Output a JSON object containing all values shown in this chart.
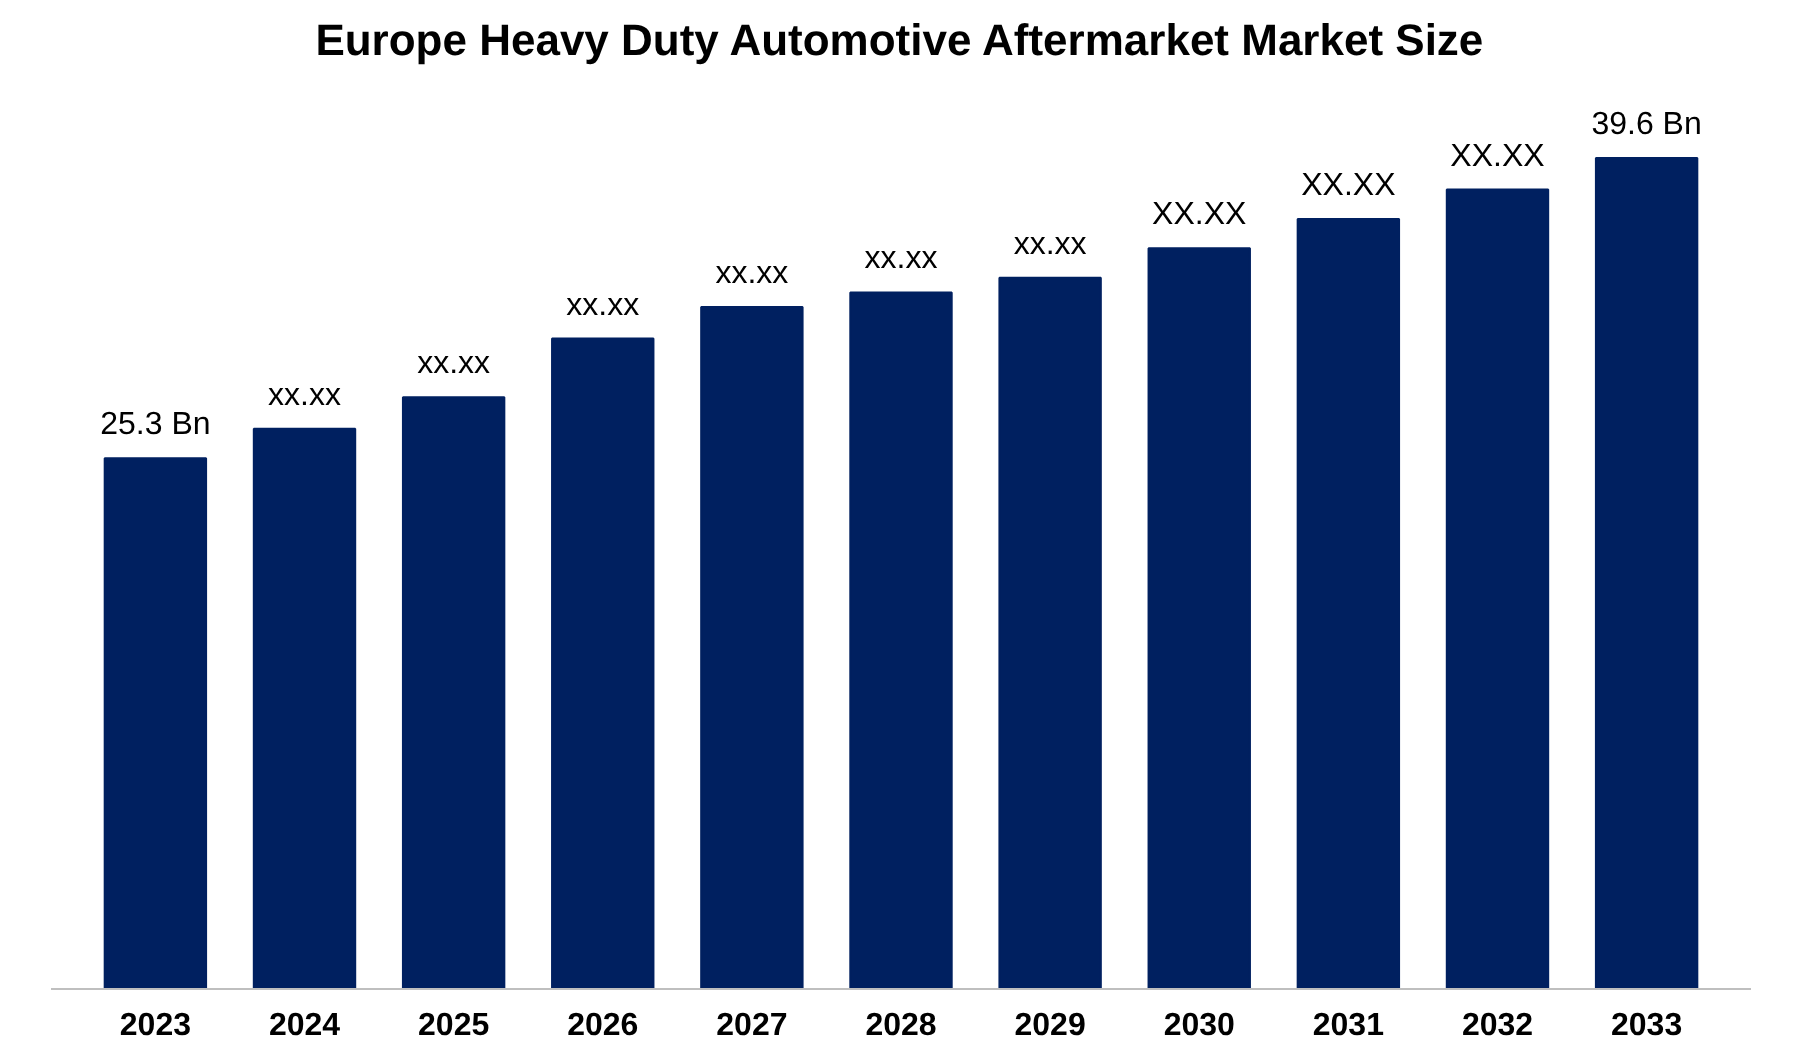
{
  "chart_data": {
    "type": "bar",
    "title": "Europe Heavy Duty Automotive Aftermarket Market Size",
    "categories": [
      "2023",
      "2024",
      "2025",
      "2026",
      "2027",
      "2028",
      "2029",
      "2030",
      "2031",
      "2032",
      "2033"
    ],
    "values": [
      25.3,
      26.7,
      28.2,
      31.0,
      32.5,
      33.2,
      33.9,
      35.3,
      36.7,
      38.1,
      39.6
    ],
    "value_labels": [
      "25.3 Bn",
      "xx.xx",
      "xx.xx",
      "xx.xx",
      "xx.xx",
      "xx.xx",
      "xx.xx",
      "XX.XX",
      "XX.XX",
      "XX.XX",
      "39.6 Bn"
    ],
    "tick_labels": "x",
    "color": "#002060",
    "grid": false
  }
}
